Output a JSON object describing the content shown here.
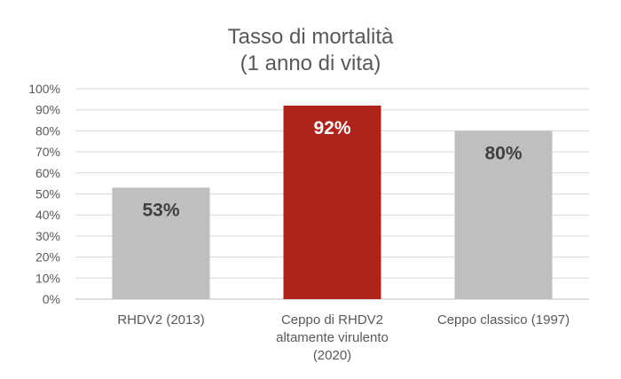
{
  "chart_data": {
    "type": "bar",
    "title_lines": [
      "Tasso di mortalità",
      "(1 anno di vita)"
    ],
    "categories": [
      [
        "RHDV2 (2013)"
      ],
      [
        "Ceppo di RHDV2",
        "altamente virulento",
        "(2020)"
      ],
      [
        "Ceppo classico (1997)"
      ]
    ],
    "values": [
      53,
      92,
      80
    ],
    "value_labels": [
      "53%",
      "92%",
      "80%"
    ],
    "bar_colors": [
      "#bfbfbf",
      "#b0231b",
      "#bfbfbf"
    ],
    "label_colors": [
      "#404040",
      "#ffffff",
      "#404040"
    ],
    "ylim": [
      0,
      100
    ],
    "yticks": [
      "0%",
      "10%",
      "20%",
      "30%",
      "40%",
      "50%",
      "60%",
      "70%",
      "80%",
      "90%",
      "100%"
    ],
    "grid": true,
    "legend": "none"
  }
}
